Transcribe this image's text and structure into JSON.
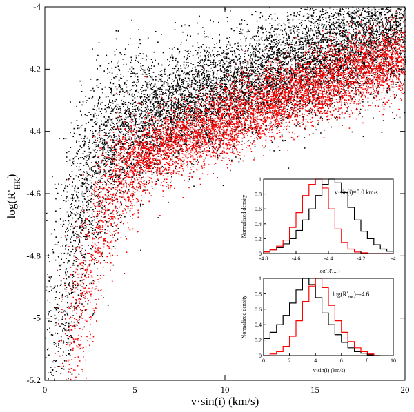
{
  "chart_data": [
    {
      "type": "scatter",
      "title": "",
      "xlabel": "v·sin(i) (km/s)",
      "ylabel": "log(R'HK)",
      "ylabel_parts": {
        "base": "log(R'",
        "sub": "HK",
        "close": ")"
      },
      "xlim": [
        0,
        20
      ],
      "ylim": [
        -5.2,
        -4.0
      ],
      "xticks": [
        0,
        5,
        10,
        15,
        20
      ],
      "yticks": [
        -5.2,
        -5.0,
        -4.8,
        -4.6,
        -4.4,
        -4.2,
        -4.0
      ],
      "xtick_labels": [
        "0",
        "5",
        "10",
        "15",
        "20"
      ],
      "ytick_labels": [
        "-5.2",
        "-5",
        "-4.8",
        "-4.6",
        "-4.4",
        "-4.2",
        "-4"
      ],
      "grid": false,
      "series": [
        {
          "color": "#000000",
          "model": "log(R'HK) ≈ -4.38 - 0.42·exp(-(v-1.5)/1.7) + 0.012·v, broad scatter",
          "points": [
            [
              0.5,
              -5.15
            ],
            [
              1.0,
              -4.95
            ],
            [
              1.5,
              -4.8
            ],
            [
              2.0,
              -4.62
            ],
            [
              2.5,
              -4.55
            ],
            [
              3.0,
              -4.48
            ],
            [
              3.5,
              -4.42
            ],
            [
              4.0,
              -4.4
            ],
            [
              5.0,
              -4.38
            ],
            [
              6.0,
              -4.35
            ],
            [
              7.0,
              -4.33
            ],
            [
              8.0,
              -4.3
            ],
            [
              10.0,
              -4.27
            ],
            [
              12.0,
              -4.22
            ],
            [
              14.0,
              -4.18
            ],
            [
              16.0,
              -4.14
            ],
            [
              18.0,
              -4.1
            ],
            [
              20.0,
              -4.07
            ]
          ]
        },
        {
          "color": "#ff0000",
          "model": "red cloud offset to higher v·sin(i), narrower scatter",
          "points": [
            [
              1.5,
              -5.15
            ],
            [
              2.0,
              -4.95
            ],
            [
              2.5,
              -4.8
            ],
            [
              3.0,
              -4.68
            ],
            [
              3.5,
              -4.6
            ],
            [
              4.0,
              -4.55
            ],
            [
              5.0,
              -4.5
            ],
            [
              6.0,
              -4.46
            ],
            [
              7.0,
              -4.43
            ],
            [
              8.0,
              -4.41
            ],
            [
              10.0,
              -4.37
            ],
            [
              12.0,
              -4.32
            ],
            [
              14.0,
              -4.27
            ],
            [
              16.0,
              -4.23
            ],
            [
              18.0,
              -4.19
            ],
            [
              20.0,
              -4.16
            ]
          ]
        }
      ]
    },
    {
      "type": "line",
      "annotation": "v·sin(i)=5.0 km/s",
      "xlabel_parts": {
        "base": "log(R'",
        "sub": "HK",
        "close": ")"
      },
      "ylabel": "Normalized density",
      "xlim": [
        -4.8,
        -4.0
      ],
      "ylim": [
        0,
        1
      ],
      "xtick_labels": [
        "-4.8",
        "-4.6",
        "-4.4",
        "-4.2",
        "-4"
      ],
      "ytick_labels": [
        "0",
        "0.2",
        "0.4",
        "0.6",
        "0.8",
        "1"
      ],
      "x": [
        -4.78,
        -4.74,
        -4.7,
        -4.66,
        -4.62,
        -4.58,
        -4.54,
        -4.5,
        -4.46,
        -4.42,
        -4.38,
        -4.34,
        -4.3,
        -4.26,
        -4.22,
        -4.18,
        -4.14,
        -4.1,
        -4.06,
        -4.02
      ],
      "series": [
        {
          "color": "#000000",
          "values": [
            0.03,
            0.05,
            0.08,
            0.13,
            0.2,
            0.31,
            0.45,
            0.6,
            0.78,
            0.93,
            1.0,
            0.95,
            0.82,
            0.62,
            0.45,
            0.3,
            0.2,
            0.12,
            0.06,
            0.03
          ]
        },
        {
          "color": "#ff0000",
          "values": [
            0.02,
            0.05,
            0.1,
            0.18,
            0.35,
            0.55,
            0.78,
            0.93,
            1.0,
            0.88,
            0.6,
            0.33,
            0.15,
            0.06,
            0.02,
            0.01,
            0.0,
            0.0,
            0.0,
            0.0
          ]
        }
      ]
    },
    {
      "type": "line",
      "annotation": "log(R'HK)=-4.6",
      "annotation_parts": {
        "base": "log(R'",
        "sub": "HK",
        "rest": ")=-4.6"
      },
      "xlabel": "v·sin(i) (km/s)",
      "ylabel": "Normalized density",
      "xlim": [
        0,
        10
      ],
      "ylim": [
        0,
        1
      ],
      "xtick_labels": [
        "0",
        "2",
        "4",
        "6",
        "8",
        "10"
      ],
      "ytick_labels": [
        "0",
        "0.2",
        "0.4",
        "0.6",
        "0.8",
        "1"
      ],
      "x": [
        0.25,
        0.75,
        1.25,
        1.75,
        2.25,
        2.75,
        3.25,
        3.75,
        4.25,
        4.75,
        5.25,
        5.75,
        6.25,
        6.75,
        7.25,
        7.75,
        8.25,
        8.75
      ],
      "series": [
        {
          "color": "#000000",
          "values": [
            0.22,
            0.3,
            0.4,
            0.52,
            0.68,
            0.85,
            1.0,
            0.92,
            0.75,
            0.55,
            0.4,
            0.27,
            0.17,
            0.1,
            0.05,
            0.03,
            0.01,
            0.0
          ]
        },
        {
          "color": "#ff0000",
          "values": [
            0.0,
            0.02,
            0.05,
            0.12,
            0.25,
            0.45,
            0.7,
            0.9,
            1.0,
            0.88,
            0.65,
            0.45,
            0.3,
            0.18,
            0.1,
            0.05,
            0.02,
            0.0
          ]
        }
      ]
    }
  ]
}
